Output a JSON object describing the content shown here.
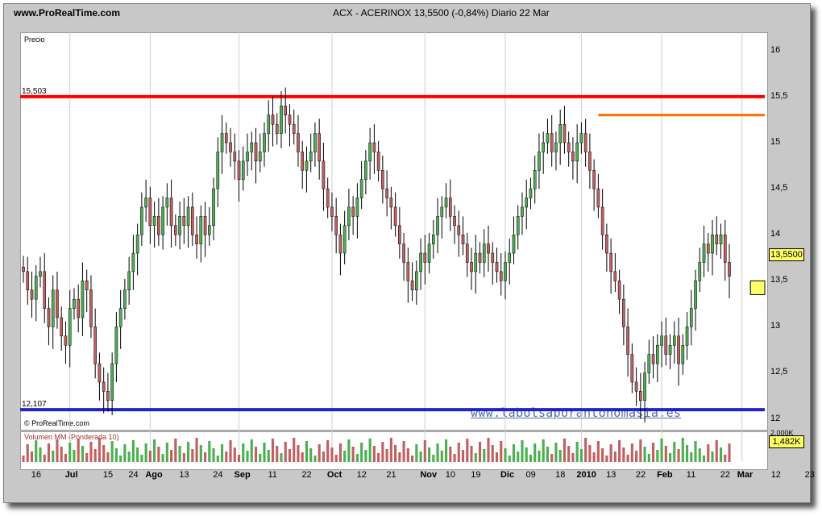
{
  "header": {
    "site": "www.ProRealTime.com",
    "title": "ACX - ACERINOX     13,5500 (-0,84%)     Diario  22 Mar"
  },
  "panels": {
    "price_label": "Precio",
    "copyright": "© ProRealTime.com",
    "volume_label": "Volumen MM (Ponderada 10)"
  },
  "watermark": "www.labolsaporantonomasia.es",
  "colors": {
    "up": "#4caf50",
    "down": "#c06060",
    "resistance": "#ff0000",
    "resistance2": "#ff6a00",
    "support": "#2222cc",
    "zone": "#ffff66"
  },
  "chart_data": {
    "type": "candlestick",
    "title": "ACX - ACERINOX",
    "last": "13,5500",
    "change": "-0,84%",
    "period": "Diario",
    "date": "22 Mar",
    "ylim": [
      11.9,
      16.2
    ],
    "yticks": [
      "16",
      "15,5",
      "15",
      "14,5",
      "14",
      "13,5",
      "13",
      "12,5",
      "12"
    ],
    "xticks": [
      {
        "label": "16",
        "i": 3
      },
      {
        "label": "Jul",
        "i": 11,
        "major": true
      },
      {
        "label": "15",
        "i": 20
      },
      {
        "label": "24",
        "i": 26
      },
      {
        "label": "Ago",
        "i": 30,
        "major": true
      },
      {
        "label": "13",
        "i": 38
      },
      {
        "label": "24",
        "i": 46
      },
      {
        "label": "Sep",
        "i": 51,
        "major": true
      },
      {
        "label": "11",
        "i": 59
      },
      {
        "label": "22",
        "i": 67
      },
      {
        "label": "Oct",
        "i": 73,
        "major": true
      },
      {
        "label": "12",
        "i": 80
      },
      {
        "label": "21",
        "i": 87
      },
      {
        "label": "Nov",
        "i": 95,
        "major": true
      },
      {
        "label": "10",
        "i": 101
      },
      {
        "label": "19",
        "i": 107
      },
      {
        "label": "Dic",
        "i": 114,
        "major": true
      },
      {
        "label": "09",
        "i": 120
      },
      {
        "label": "18",
        "i": 127
      },
      {
        "label": "2010",
        "i": 132,
        "major": true
      },
      {
        "label": "13",
        "i": 139
      },
      {
        "label": "22",
        "i": 146
      },
      {
        "label": "Feb",
        "i": 151,
        "major": true
      },
      {
        "label": "11",
        "i": 158
      },
      {
        "label": "22",
        "i": 166
      },
      {
        "label": "Mar",
        "i": 170,
        "major": true
      },
      {
        "label": "12",
        "i": 178
      },
      {
        "label": "23",
        "i": 186
      }
    ],
    "levels": {
      "resistance": {
        "value": 15.5,
        "label": "15,503"
      },
      "resistance2": {
        "value": 15.3
      },
      "support": {
        "value": 12.1,
        "label": "12,107"
      },
      "zone": [
        13.35,
        13.5
      ]
    },
    "price_tag": "13,5500",
    "volume_tag": "1,482K",
    "volume_scale_label": "2.000K",
    "closes": [
      13.6,
      13.4,
      13.3,
      13.55,
      13.6,
      13.2,
      13.0,
      13.4,
      13.1,
      12.9,
      12.8,
      13.2,
      13.3,
      13.1,
      13.5,
      13.4,
      13.0,
      12.6,
      12.4,
      12.3,
      12.2,
      12.6,
      13.0,
      13.2,
      13.4,
      13.6,
      13.8,
      14.0,
      14.3,
      14.4,
      14.1,
      14.2,
      14.0,
      14.3,
      14.4,
      14.1,
      14.0,
      14.2,
      14.1,
      14.3,
      14.0,
      13.9,
      14.2,
      14.0,
      14.1,
      14.5,
      14.9,
      15.1,
      15.0,
      14.9,
      14.8,
      14.6,
      14.8,
      14.9,
      15.0,
      14.8,
      14.9,
      15.1,
      15.3,
      15.2,
      15.1,
      15.4,
      15.3,
      15.2,
      15.1,
      14.9,
      14.7,
      14.8,
      14.9,
      15.1,
      14.8,
      14.5,
      14.3,
      14.2,
      14.0,
      13.8,
      14.1,
      14.3,
      14.2,
      14.4,
      14.6,
      14.8,
      15.0,
      14.9,
      14.7,
      14.5,
      14.4,
      14.3,
      14.1,
      13.9,
      13.7,
      13.5,
      13.4,
      13.6,
      13.8,
      13.7,
      13.9,
      14.0,
      14.2,
      14.3,
      14.4,
      14.2,
      14.1,
      14.0,
      13.9,
      13.7,
      13.6,
      13.8,
      13.7,
      13.9,
      13.8,
      13.7,
      13.6,
      13.5,
      13.7,
      13.8,
      14.0,
      14.2,
      14.3,
      14.4,
      14.5,
      14.7,
      14.9,
      15.0,
      15.1,
      14.9,
      15.0,
      15.2,
      15.0,
      14.9,
      14.8,
      15.0,
      15.1,
      14.9,
      14.7,
      14.5,
      14.3,
      14.0,
      13.8,
      13.6,
      13.5,
      13.3,
      13.0,
      12.7,
      12.4,
      12.3,
      12.2,
      12.5,
      12.7,
      12.6,
      12.8,
      12.9,
      12.7,
      12.8,
      12.9,
      12.6,
      12.8,
      13.0,
      13.2,
      13.5,
      13.7,
      13.9,
      13.8,
      14.0,
      13.9,
      14.0,
      13.7,
      13.55
    ]
  }
}
